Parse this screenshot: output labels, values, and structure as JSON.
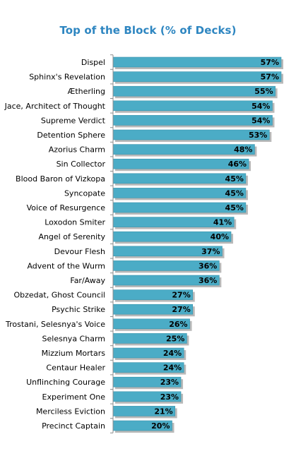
{
  "chart_data": {
    "type": "bar",
    "orientation": "horizontal",
    "title": "Top of the Block (% of Decks)",
    "xlabel": "",
    "ylabel": "",
    "xlim": [
      0,
      57
    ],
    "grid": false,
    "legend": "none",
    "colors": {
      "bar": "#4bacc6",
      "bar_edge": "#3a93ab",
      "shadow": "#b9b9b9",
      "axis": "#8c8c8c",
      "title": "#2e86c1"
    },
    "categories": [
      "Dispel",
      "Sphinx's Revelation",
      "Ætherling",
      "Jace, Architect of Thought",
      "Supreme Verdict",
      "Detention Sphere",
      "Azorius Charm",
      "Sin Collector",
      "Blood Baron of Vizkopa",
      "Syncopate",
      "Voice of Resurgence",
      "Loxodon Smiter",
      "Angel of Serenity",
      "Devour Flesh",
      "Advent of the Wurm",
      "Far/Away",
      "Obzedat, Ghost Council",
      "Psychic Strike",
      "Trostani, Selesnya's Voice",
      "Selesnya Charm",
      "Mizzium Mortars",
      "Centaur Healer",
      "Unflinching Courage",
      "Experiment One",
      "Merciless Eviction",
      "Precinct Captain"
    ],
    "values": [
      57,
      57,
      55,
      54,
      54,
      53,
      48,
      46,
      45,
      45,
      45,
      41,
      40,
      37,
      36,
      36,
      27,
      27,
      26,
      25,
      24,
      24,
      23,
      23,
      21,
      20
    ],
    "labels": [
      "57%",
      "57%",
      "55%",
      "54%",
      "54%",
      "53%",
      "48%",
      "46%",
      "45%",
      "45%",
      "45%",
      "41%",
      "40%",
      "37%",
      "36%",
      "36%",
      "27%",
      "27%",
      "26%",
      "25%",
      "24%",
      "24%",
      "23%",
      "23%",
      "21%",
      "20%"
    ]
  }
}
